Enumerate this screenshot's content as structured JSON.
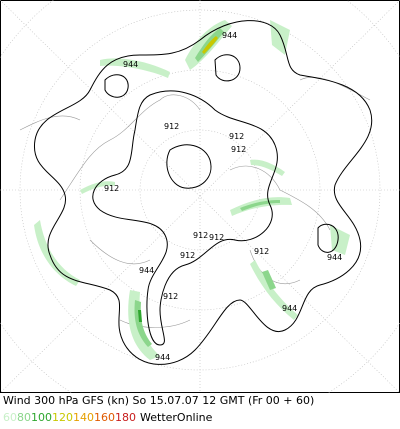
{
  "map": {
    "caption": "Wind 300 hPa GFS (kn) So 15.07.07 12 GMT (Fr 00 + 60)",
    "contour_labels": [
      "944",
      "944",
      "944",
      "944",
      "944",
      "944",
      "912",
      "912",
      "912",
      "912",
      "912",
      "912",
      "912",
      "912",
      "912"
    ],
    "legend": [
      {
        "label": 60,
        "color": "#c8f0c8"
      },
      {
        "label": 80,
        "color": "#8cd68c"
      },
      {
        "label": 100,
        "color": "#2ea62e"
      },
      {
        "label": 120,
        "color": "#c8c800"
      },
      {
        "label": 140,
        "color": "#e6a000"
      },
      {
        "label": 160,
        "color": "#e05a00"
      },
      {
        "label": 180,
        "color": "#c81e1e"
      }
    ],
    "brand": "WetterOnline"
  }
}
